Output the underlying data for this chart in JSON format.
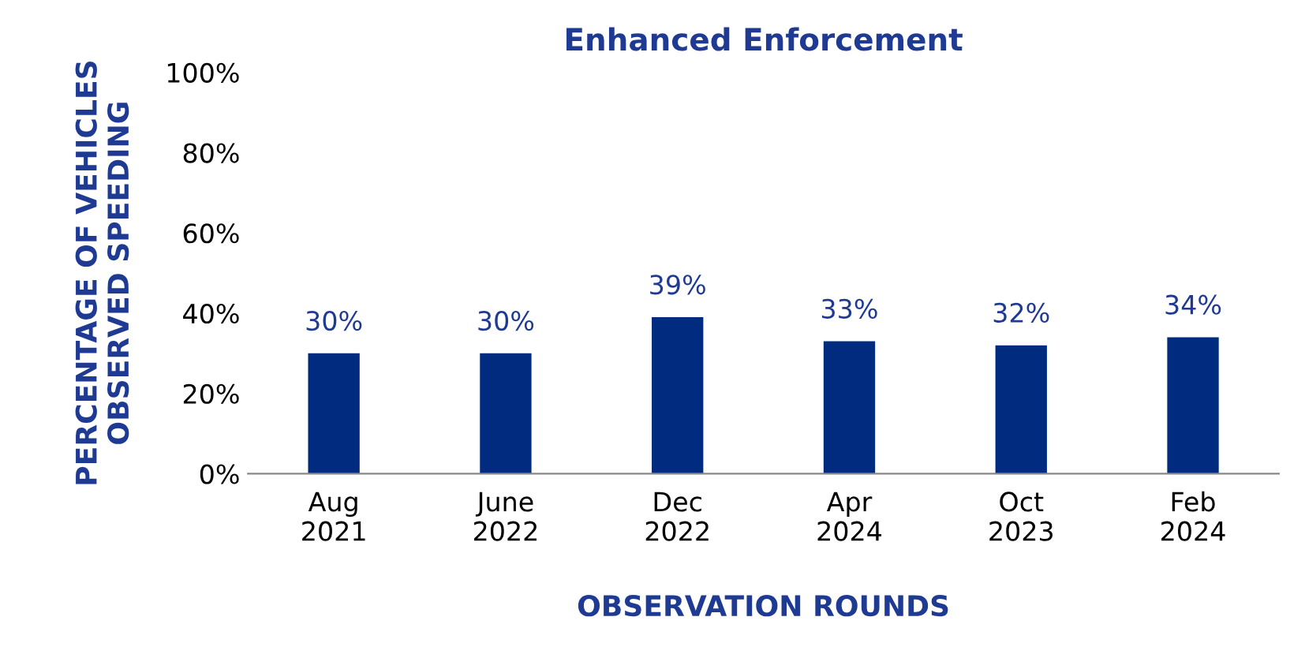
{
  "chart_data": {
    "type": "bar",
    "title": "Enhanced Enforcement",
    "xlabel": "OBSERVATION ROUNDS",
    "ylabel": "PERCENTAGE OF VEHICLES\nOBSERVED SPEEDING",
    "categories": [
      "Aug\n2021",
      "June\n2022",
      "Dec\n2022",
      "Apr\n2024",
      "Oct\n2023",
      "Feb\n2024"
    ],
    "values": [
      30,
      30,
      39,
      33,
      32,
      34
    ],
    "color": "#002b7f",
    "value_labels": [
      "30%",
      "30%",
      "39%",
      "33%",
      "32%",
      "34%"
    ],
    "ylim": [
      0,
      100
    ],
    "yticks": [
      {
        "value": 0,
        "label": "0%"
      },
      {
        "value": 20,
        "label": "20%"
      },
      {
        "value": 40,
        "label": "40%"
      },
      {
        "value": 60,
        "label": "60%"
      },
      {
        "value": 80,
        "label": "80%"
      },
      {
        "value": 100,
        "label": "100%"
      }
    ],
    "grid": false,
    "legend": false
  }
}
